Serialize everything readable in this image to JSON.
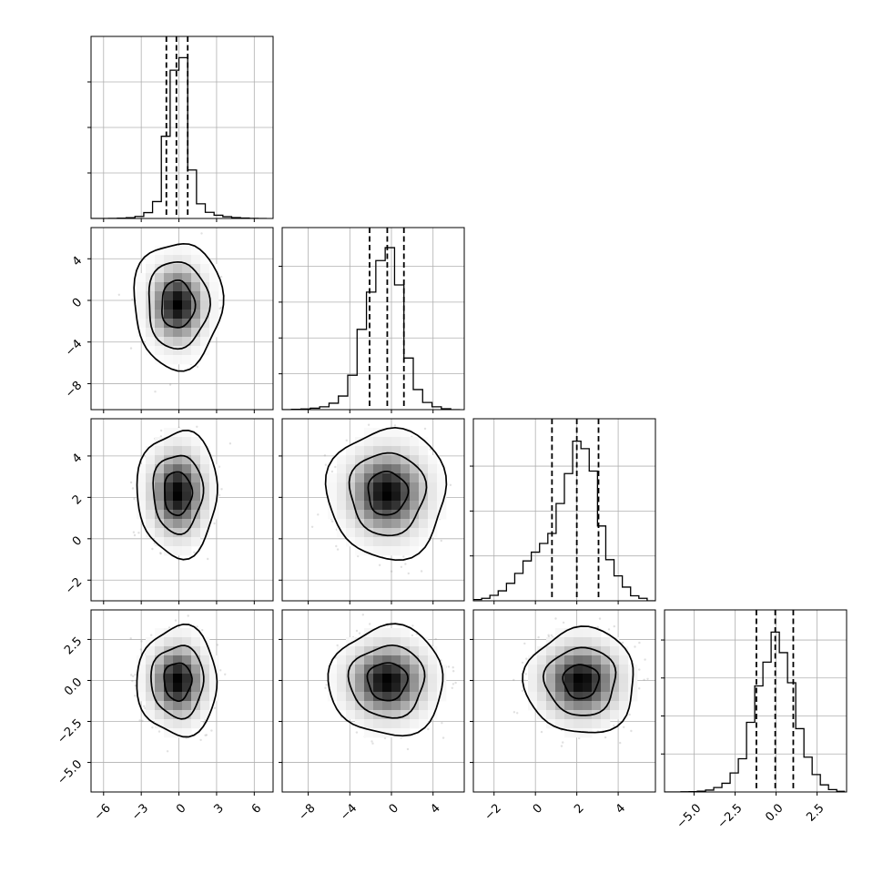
{
  "chart_data": {
    "type": "corner",
    "title": "",
    "variables": [
      {
        "xlim": [
          -7,
          7.5
        ],
        "ticks": [
          -6,
          -3,
          0,
          3,
          6
        ],
        "tick_labels": [
          "−6",
          "−3",
          "0",
          "3",
          "6"
        ],
        "quantiles": [
          -1.0,
          -0.2,
          0.7
        ],
        "hist_bins": [
          {
            "x0": -7.0,
            "x1": -6.3,
            "count": 0
          },
          {
            "x0": -6.3,
            "x1": -5.6,
            "count": 0
          },
          {
            "x0": -5.6,
            "x1": -4.9,
            "count": 1
          },
          {
            "x0": -4.9,
            "x1": -4.2,
            "count": 2
          },
          {
            "x0": -4.2,
            "x1": -3.5,
            "count": 5
          },
          {
            "x0": -3.5,
            "x1": -2.8,
            "count": 14
          },
          {
            "x0": -2.8,
            "x1": -2.1,
            "count": 40
          },
          {
            "x0": -2.1,
            "x1": -1.4,
            "count": 115
          },
          {
            "x0": -1.4,
            "x1": -0.7,
            "count": 560
          },
          {
            "x0": -0.7,
            "x1": 0.0,
            "count": 1010
          },
          {
            "x0": 0.0,
            "x1": 0.7,
            "count": 1095
          },
          {
            "x0": 0.7,
            "x1": 1.4,
            "count": 330
          },
          {
            "x0": 1.4,
            "x1": 2.1,
            "count": 100
          },
          {
            "x0": 2.1,
            "x1": 2.8,
            "count": 42
          },
          {
            "x0": 2.8,
            "x1": 3.5,
            "count": 22
          },
          {
            "x0": 3.5,
            "x1": 4.2,
            "count": 12
          },
          {
            "x0": 4.2,
            "x1": 4.9,
            "count": 6
          },
          {
            "x0": 4.9,
            "x1": 5.6,
            "count": 3
          },
          {
            "x0": 5.6,
            "x1": 6.3,
            "count": 1
          },
          {
            "x0": 6.3,
            "x1": 7.0,
            "count": 0
          }
        ],
        "hist_ymax": 1240,
        "hist_grid": [
          310,
          620,
          930
        ]
      },
      {
        "xlim": [
          -10.5,
          7.0
        ],
        "ticks": [
          -8,
          -4,
          0,
          4
        ],
        "tick_labels": [
          "−8",
          "−4",
          "0",
          "4"
        ],
        "quantiles": [
          -2.1,
          -0.4,
          1.2
        ],
        "hist_bins": [
          {
            "x0": -10.5,
            "x1": -9.6,
            "count": 0
          },
          {
            "x0": -9.6,
            "x1": -8.7,
            "count": 2
          },
          {
            "x0": -8.7,
            "x1": -7.8,
            "count": 5
          },
          {
            "x0": -7.8,
            "x1": -6.9,
            "count": 10
          },
          {
            "x0": -6.9,
            "x1": -6.0,
            "count": 20
          },
          {
            "x0": -6.0,
            "x1": -5.1,
            "count": 45
          },
          {
            "x0": -5.1,
            "x1": -4.2,
            "count": 95
          },
          {
            "x0": -4.2,
            "x1": -3.3,
            "count": 240
          },
          {
            "x0": -3.3,
            "x1": -2.4,
            "count": 560
          },
          {
            "x0": -2.4,
            "x1": -1.5,
            "count": 820
          },
          {
            "x0": -1.5,
            "x1": -0.6,
            "count": 1040
          },
          {
            "x0": -0.6,
            "x1": 0.3,
            "count": 1130
          },
          {
            "x0": 0.3,
            "x1": 1.2,
            "count": 870
          },
          {
            "x0": 1.2,
            "x1": 2.1,
            "count": 360
          },
          {
            "x0": 2.1,
            "x1": 3.0,
            "count": 140
          },
          {
            "x0": 3.0,
            "x1": 3.9,
            "count": 50
          },
          {
            "x0": 3.9,
            "x1": 4.8,
            "count": 20
          },
          {
            "x0": 4.8,
            "x1": 5.7,
            "count": 6
          },
          {
            "x0": 5.7,
            "x1": 6.6,
            "count": 0
          }
        ],
        "hist_ymax": 1270,
        "hist_grid": [
          250,
          500,
          750,
          1000
        ]
      },
      {
        "xlim": [
          -3.0,
          5.8
        ],
        "ticks": [
          -2,
          0,
          2,
          4
        ],
        "tick_labels": [
          "−2",
          "0",
          "2",
          "4"
        ],
        "quantiles": [
          0.8,
          2.0,
          3.05
        ],
        "hist_bins": [
          {
            "x0": -3.0,
            "x1": -2.6,
            "count": 5
          },
          {
            "x0": -2.6,
            "x1": -2.2,
            "count": 10
          },
          {
            "x0": -2.2,
            "x1": -1.8,
            "count": 22
          },
          {
            "x0": -1.8,
            "x1": -1.4,
            "count": 40
          },
          {
            "x0": -1.4,
            "x1": -1.0,
            "count": 70
          },
          {
            "x0": -1.0,
            "x1": -0.6,
            "count": 110
          },
          {
            "x0": -0.6,
            "x1": -0.2,
            "count": 160
          },
          {
            "x0": -0.2,
            "x1": 0.2,
            "count": 195
          },
          {
            "x0": 0.2,
            "x1": 0.6,
            "count": 230
          },
          {
            "x0": 0.6,
            "x1": 1.0,
            "count": 270
          },
          {
            "x0": 1.0,
            "x1": 1.4,
            "count": 390
          },
          {
            "x0": 1.4,
            "x1": 1.8,
            "count": 510
          },
          {
            "x0": 1.8,
            "x1": 2.2,
            "count": 640
          },
          {
            "x0": 2.2,
            "x1": 2.6,
            "count": 610
          },
          {
            "x0": 2.6,
            "x1": 3.0,
            "count": 520
          },
          {
            "x0": 3.0,
            "x1": 3.4,
            "count": 300
          },
          {
            "x0": 3.4,
            "x1": 3.8,
            "count": 165
          },
          {
            "x0": 3.8,
            "x1": 4.2,
            "count": 100
          },
          {
            "x0": 4.2,
            "x1": 4.6,
            "count": 55
          },
          {
            "x0": 4.6,
            "x1": 5.0,
            "count": 20
          },
          {
            "x0": 5.0,
            "x1": 5.4,
            "count": 10
          },
          {
            "x0": 5.4,
            "x1": 5.8,
            "count": 0
          }
        ],
        "hist_ymax": 730,
        "hist_grid": [
          180,
          360,
          540
        ]
      },
      {
        "xlim": [
          -6.8,
          4.3
        ],
        "ticks": [
          -5.0,
          -2.5,
          0.0,
          2.5
        ],
        "tick_labels": [
          "−5.0",
          "−2.5",
          "0.0",
          "2.5"
        ],
        "quantiles": [
          -1.2,
          -0.05,
          1.05
        ],
        "hist_bins": [
          {
            "x0": -6.8,
            "x1": -6.3,
            "count": 0
          },
          {
            "x0": -6.3,
            "x1": -5.8,
            "count": 0
          },
          {
            "x0": -5.8,
            "x1": -5.3,
            "count": 1
          },
          {
            "x0": -5.3,
            "x1": -4.8,
            "count": 2
          },
          {
            "x0": -4.8,
            "x1": -4.3,
            "count": 5
          },
          {
            "x0": -4.3,
            "x1": -3.8,
            "count": 12
          },
          {
            "x0": -3.8,
            "x1": -3.3,
            "count": 28
          },
          {
            "x0": -3.3,
            "x1": -2.8,
            "count": 55
          },
          {
            "x0": -2.8,
            "x1": -2.3,
            "count": 120
          },
          {
            "x0": -2.3,
            "x1": -1.8,
            "count": 210
          },
          {
            "x0": -1.8,
            "x1": -1.3,
            "count": 440
          },
          {
            "x0": -1.3,
            "x1": -0.8,
            "count": 670
          },
          {
            "x0": -0.8,
            "x1": -0.3,
            "count": 820
          },
          {
            "x0": -0.3,
            "x1": 0.2,
            "count": 1010
          },
          {
            "x0": 0.2,
            "x1": 0.7,
            "count": 880
          },
          {
            "x0": 0.7,
            "x1": 1.2,
            "count": 690
          },
          {
            "x0": 1.2,
            "x1": 1.7,
            "count": 400
          },
          {
            "x0": 1.7,
            "x1": 2.2,
            "count": 220
          },
          {
            "x0": 2.2,
            "x1": 2.7,
            "count": 110
          },
          {
            "x0": 2.7,
            "x1": 3.2,
            "count": 45
          },
          {
            "x0": 3.2,
            "x1": 3.7,
            "count": 15
          },
          {
            "x0": 3.7,
            "x1": 4.2,
            "count": 4
          }
        ],
        "hist_ymax": 1150,
        "hist_grid": [
          240,
          480,
          720,
          960
        ]
      }
    ],
    "y_axes": [
      null,
      {
        "ylim": [
          -10.5,
          7.0
        ],
        "ticks": [
          4,
          0,
          -4,
          -8
        ],
        "tick_labels": [
          "4",
          "0",
          "−4",
          "−8"
        ]
      },
      {
        "ylim": [
          -3.0,
          5.8
        ],
        "ticks": [
          4,
          2,
          0,
          -2
        ],
        "tick_labels": [
          "4",
          "2",
          "0",
          "−2"
        ]
      },
      {
        "ylim": [
          -6.8,
          4.3
        ],
        "ticks": [
          2.5,
          0.0,
          -2.5,
          -5.0
        ],
        "tick_labels": [
          "2.5",
          "0.0",
          "−2.5",
          "−5.0"
        ]
      }
    ],
    "pairs": [
      {
        "row": 1,
        "col": 0,
        "mean": [
          -0.1,
          -0.4
        ],
        "sd": [
          1.1,
          1.9
        ],
        "rho": 0.0,
        "contours": [
          1.2,
          2.2,
          3.2
        ]
      },
      {
        "row": 2,
        "col": 0,
        "mean": [
          -0.1,
          2.2
        ],
        "sd": [
          1.1,
          1.05
        ],
        "rho": 0.0,
        "contours": [
          1.0,
          1.8,
          2.9
        ]
      },
      {
        "row": 2,
        "col": 1,
        "mean": [
          -0.4,
          2.2
        ],
        "sd": [
          1.9,
          1.05
        ],
        "rho": 0.0,
        "contours": [
          1.0,
          1.9,
          3.0
        ]
      },
      {
        "row": 3,
        "col": 0,
        "mean": [
          -0.1,
          -0.05
        ],
        "sd": [
          1.1,
          1.15
        ],
        "rho": 0.0,
        "contours": [
          1.0,
          1.9,
          2.9
        ]
      },
      {
        "row": 3,
        "col": 1,
        "mean": [
          -0.4,
          -0.05
        ],
        "sd": [
          1.9,
          1.15
        ],
        "rho": 0.0,
        "contours": [
          1.0,
          1.9,
          2.9
        ]
      },
      {
        "row": 3,
        "col": 2,
        "mean": [
          2.2,
          -0.05
        ],
        "sd": [
          0.95,
          1.15
        ],
        "rho": 0.0,
        "contours": [
          0.9,
          1.8,
          2.8
        ]
      }
    ],
    "grid": true,
    "contour_color": "#000000",
    "hist_color": "#000000",
    "scatter_color": "#909090"
  }
}
